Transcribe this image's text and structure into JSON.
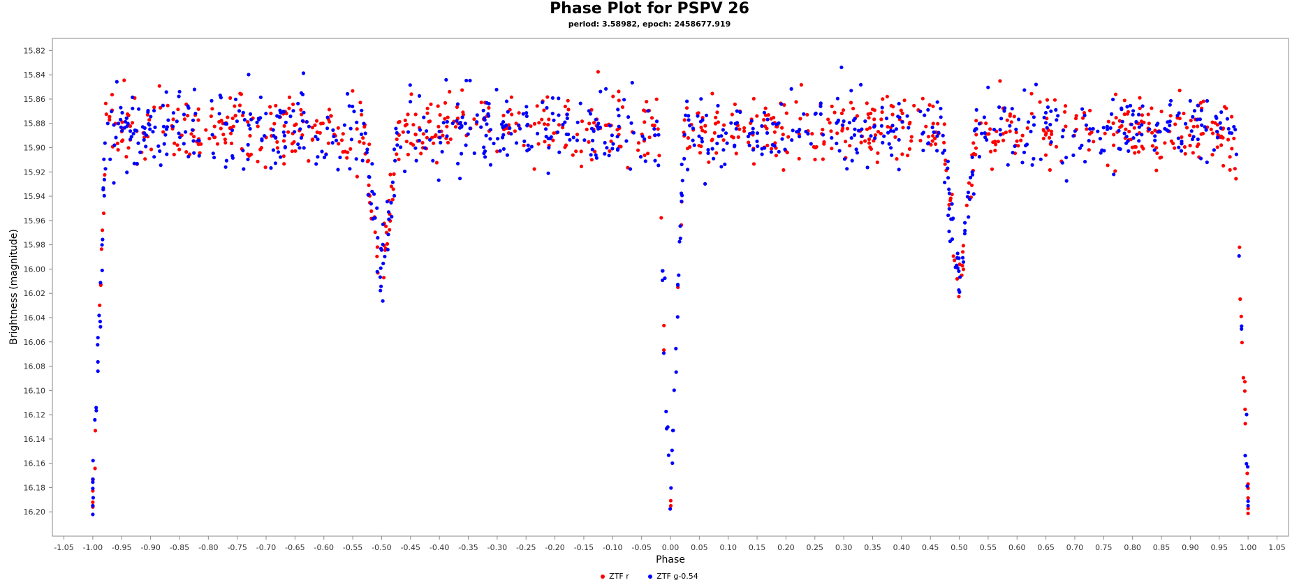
{
  "chart_data": {
    "type": "scatter",
    "title": "Phase Plot for PSPV 26",
    "subtitle": "period: 3.58982, epoch: 2458677.919",
    "xlabel": "Phase",
    "ylabel": "Brightness (magnitude)",
    "xlim": [
      -1.07,
      1.07
    ],
    "ylim": [
      16.22,
      15.81
    ],
    "y_inverted": true,
    "xticks": [
      "-1.05",
      "-1.00",
      "-0.95",
      "-0.90",
      "-0.85",
      "-0.80",
      "-0.75",
      "-0.70",
      "-0.65",
      "-0.60",
      "-0.55",
      "-0.50",
      "-0.45",
      "-0.40",
      "-0.35",
      "-0.30",
      "-0.25",
      "-0.20",
      "-0.15",
      "-0.10",
      "-0.05",
      "0.00",
      "0.05",
      "0.10",
      "0.15",
      "0.20",
      "0.25",
      "0.30",
      "0.35",
      "0.40",
      "0.45",
      "0.50",
      "0.55",
      "0.60",
      "0.65",
      "0.70",
      "0.75",
      "0.80",
      "0.85",
      "0.90",
      "0.95",
      "1.00",
      "1.05"
    ],
    "yticks": [
      "15.82",
      "15.84",
      "15.86",
      "15.88",
      "15.90",
      "15.92",
      "15.94",
      "15.96",
      "15.98",
      "16.00",
      "16.02",
      "16.04",
      "16.06",
      "16.08",
      "16.10",
      "16.12",
      "16.14",
      "16.16",
      "16.18",
      "16.20"
    ],
    "grid": false,
    "legend_position": "bottom-center",
    "series": [
      {
        "name": "ZTF r",
        "color": "#ff0000"
      },
      {
        "name": "ZTF g-0.54",
        "color": "#0000ff"
      }
    ],
    "light_curve_model": {
      "baseline_mag": 15.885,
      "baseline_scatter": 0.014,
      "primary_eclipse": {
        "center_phase": 0.0,
        "depth_mag": 16.19,
        "half_width_phase": 0.022
      },
      "secondary_eclipse": {
        "center_phase": 0.5,
        "depth_mag": 16.01,
        "half_width_phase": 0.03
      }
    },
    "points_per_series": 820
  },
  "legend": {
    "r_label": "ZTF r",
    "g_label": "ZTF g-0.54"
  }
}
